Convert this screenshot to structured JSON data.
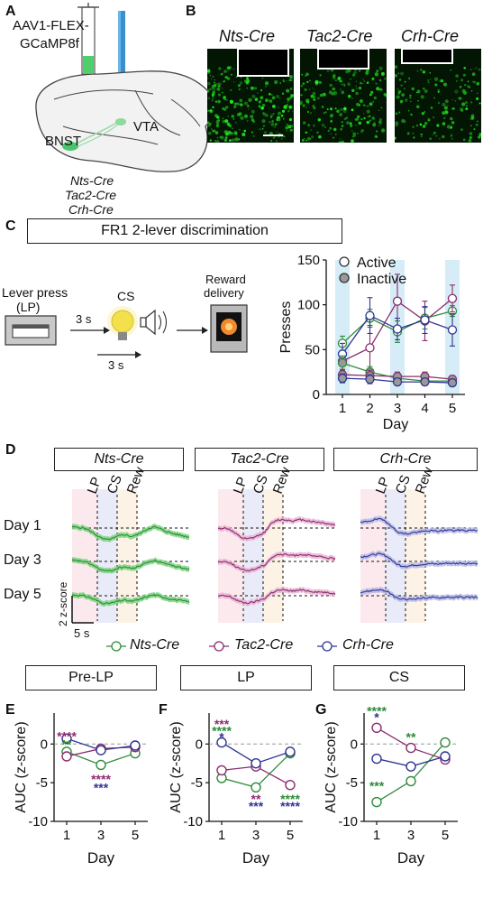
{
  "panel_labels": {
    "a": "A",
    "b": "B",
    "c": "C",
    "d": "D",
    "e": "E",
    "f": "F",
    "g": "G"
  },
  "panel_a": {
    "virus_line1": "AAV1-FLEX-",
    "virus_line2": "GCaMP8f",
    "bnst": "BNST",
    "vta": "VTA",
    "lines": [
      "Nts-Cre",
      "Tac2-Cre",
      "Crh-Cre"
    ]
  },
  "panel_b": {
    "titles": [
      "Nts-Cre",
      "Tac2-Cre",
      "Crh-Cre"
    ]
  },
  "panel_c": {
    "box_title": "FR1 2-lever discrimination",
    "lever_press": "Lever press",
    "lp_abbrev": "(LP)",
    "cs": "CS",
    "reward_line1": "Reward",
    "reward_line2": "delivery",
    "delay1": "3 s",
    "delay2": "3 s"
  },
  "colors": {
    "nts": "#2e8b3a",
    "tac2": "#8b2c6e",
    "crh": "#2f3590",
    "green_fill": "#7dd47e",
    "pink_fill": "#e7b4d4",
    "blue_fill": "#b5b9e6",
    "shade_blue": "#d6ecf7"
  },
  "chart_data": [
    {
      "type": "line",
      "panel": "C",
      "xlabel": "Day",
      "ylabel": "Presses",
      "x": [
        1,
        2,
        3,
        4,
        5
      ],
      "ylim": [
        0,
        150
      ],
      "yticks": [
        0,
        50,
        100,
        150
      ],
      "legend": [
        "Active",
        "Inactive"
      ],
      "series": [
        {
          "group": "Nts-Cre",
          "kind": "Active",
          "values": [
            57,
            85,
            70,
            85,
            93
          ],
          "err": [
            8,
            10,
            12,
            12,
            6
          ]
        },
        {
          "group": "Tac2-Cre",
          "kind": "Active",
          "values": [
            37,
            52,
            104,
            82,
            107
          ],
          "err": [
            10,
            25,
            30,
            22,
            15
          ]
        },
        {
          "group": "Crh-Cre",
          "kind": "Active",
          "values": [
            45,
            88,
            73,
            83,
            72
          ],
          "err": [
            12,
            20,
            12,
            15,
            18
          ]
        },
        {
          "group": "Nts-Cre",
          "kind": "Inactive",
          "values": [
            35,
            25,
            18,
            15,
            15
          ],
          "err": [
            8,
            6,
            5,
            4,
            4
          ]
        },
        {
          "group": "Tac2-Cre",
          "kind": "Inactive",
          "values": [
            22,
            21,
            20,
            20,
            17
          ],
          "err": [
            6,
            6,
            5,
            5,
            4
          ]
        },
        {
          "group": "Crh-Cre",
          "kind": "Inactive",
          "values": [
            18,
            17,
            14,
            14,
            13
          ],
          "err": [
            5,
            5,
            4,
            4,
            4
          ]
        }
      ],
      "shaded_days": [
        1,
        3,
        5
      ]
    },
    {
      "type": "line",
      "panel": "D",
      "titles": [
        "Nts-Cre",
        "Tac2-Cre",
        "Crh-Cre"
      ],
      "events": [
        "LP",
        "CS",
        "Rew"
      ],
      "rows": [
        "Day 1",
        "Day 3",
        "Day 5"
      ],
      "scale_y": "2 z-score",
      "scale_x": "5 s",
      "legend": [
        "Nts-Cre",
        "Tac2-Cre",
        "Crh-Cre"
      ]
    },
    {
      "type": "line",
      "panel": "E",
      "title": "Pre-LP",
      "xlabel": "Day",
      "ylabel": "AUC (z-score)",
      "x": [
        1,
        3,
        5
      ],
      "ylim": [
        -10,
        0
      ],
      "yticks": [
        0,
        -5,
        -10
      ],
      "series": [
        {
          "name": "Nts-Cre",
          "values": [
            -1.0,
            -2.7,
            -1.2
          ]
        },
        {
          "name": "Tac2-Cre",
          "values": [
            -1.6,
            -0.6,
            -0.4
          ]
        },
        {
          "name": "Crh-Cre",
          "values": [
            0.7,
            -0.8,
            -0.2
          ]
        }
      ],
      "stars": [
        {
          "text": "****",
          "color": "tac2",
          "day": 1,
          "y": 1.0
        },
        {
          "text": "**",
          "color": "nts",
          "day": 1,
          "y": 0.0
        },
        {
          "text": "****",
          "color": "tac2",
          "day": 3,
          "y": -4.5
        },
        {
          "text": "***",
          "color": "crh",
          "day": 3,
          "y": -5.6
        }
      ]
    },
    {
      "type": "line",
      "panel": "F",
      "title": "LP",
      "xlabel": "Day",
      "ylabel": "AUC (z-score)",
      "x": [
        1,
        3,
        5
      ],
      "ylim": [
        -10,
        0
      ],
      "yticks": [
        0,
        -5,
        -10
      ],
      "series": [
        {
          "name": "Nts-Cre",
          "values": [
            -4.4,
            -5.6,
            -1.2
          ]
        },
        {
          "name": "Tac2-Cre",
          "values": [
            -3.4,
            -2.9,
            -5.3
          ]
        },
        {
          "name": "Crh-Cre",
          "values": [
            0.2,
            -2.5,
            -1.0
          ]
        }
      ],
      "stars": [
        {
          "text": "***",
          "color": "tac2",
          "day": 1,
          "y": 2.6
        },
        {
          "text": "****",
          "color": "nts",
          "day": 1,
          "y": 1.7
        },
        {
          "text": "*",
          "color": "crh",
          "day": 1,
          "y": 0.9
        },
        {
          "text": "**",
          "color": "tac2",
          "day": 3,
          "y": -7.1
        },
        {
          "text": "***",
          "color": "crh",
          "day": 3,
          "y": -8.0
        },
        {
          "text": "****",
          "color": "nts",
          "day": 5,
          "y": -7.1
        },
        {
          "text": "****",
          "color": "crh",
          "day": 5,
          "y": -8.0
        }
      ]
    },
    {
      "type": "line",
      "panel": "G",
      "title": "CS",
      "xlabel": "Day",
      "ylabel": "AUC (z-score)",
      "x": [
        1,
        3,
        5
      ],
      "ylim": [
        -10,
        0
      ],
      "yticks": [
        0,
        -5,
        -10
      ],
      "series": [
        {
          "name": "Nts-Cre",
          "values": [
            -7.5,
            -4.8,
            0.2
          ]
        },
        {
          "name": "Tac2-Cre",
          "values": [
            2.1,
            -0.5,
            -2.0
          ]
        },
        {
          "name": "Crh-Cre",
          "values": [
            -1.9,
            -2.9,
            -1.6
          ]
        }
      ],
      "stars": [
        {
          "text": "****",
          "color": "nts",
          "day": 1,
          "y": 4.3
        },
        {
          "text": "*",
          "color": "crh",
          "day": 1,
          "y": 3.5
        },
        {
          "text": "**",
          "color": "nts",
          "day": 3,
          "y": 0.9
        },
        {
          "text": "***",
          "color": "nts",
          "day": 1,
          "y": -5.4
        }
      ]
    }
  ]
}
